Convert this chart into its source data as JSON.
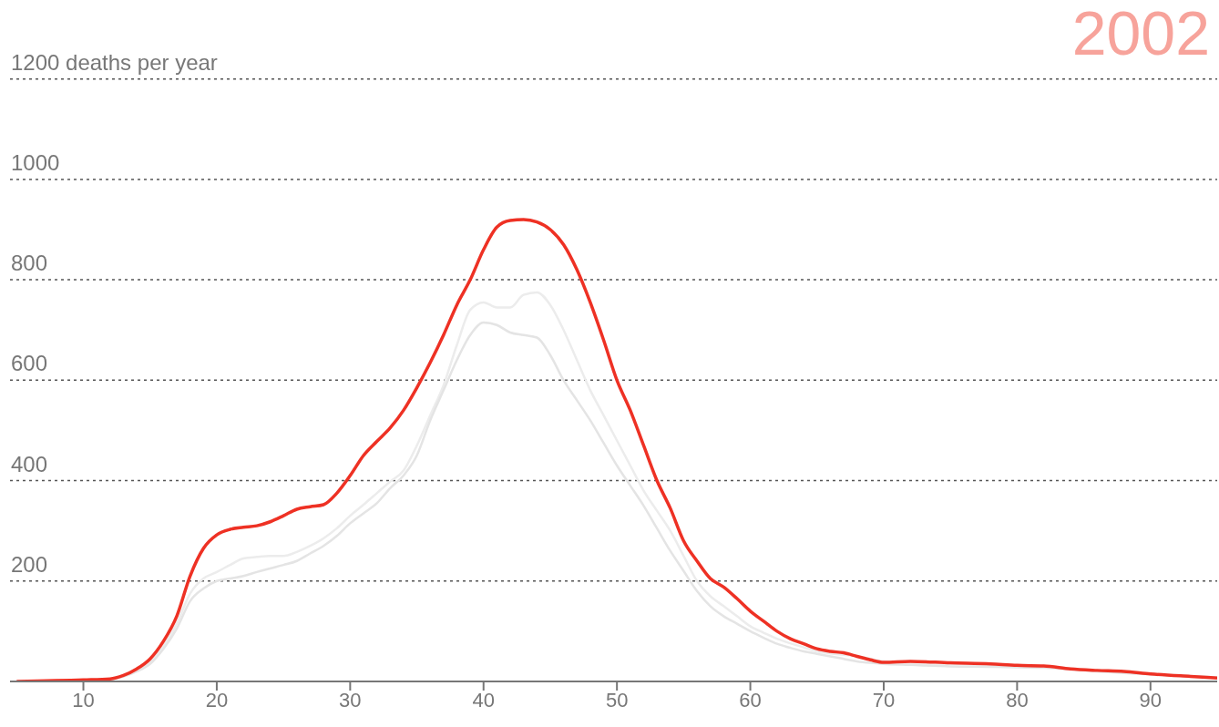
{
  "chart_data": {
    "type": "line",
    "annotations": [
      "2002"
    ],
    "x": [
      5,
      10,
      12,
      13,
      14,
      15,
      16,
      17,
      18,
      19,
      20,
      21,
      22,
      23,
      24,
      25,
      26,
      27,
      28,
      29,
      30,
      31,
      32,
      33,
      34,
      35,
      36,
      37,
      38,
      39,
      40,
      41,
      42,
      43,
      44,
      45,
      46,
      47,
      48,
      49,
      50,
      51,
      52,
      53,
      54,
      55,
      56,
      57,
      58,
      59,
      60,
      61,
      62,
      63,
      64,
      65,
      66,
      67,
      68,
      69,
      70,
      72,
      75,
      78,
      80,
      82,
      84,
      86,
      88,
      90,
      93,
      95
    ],
    "series": [
      {
        "color": "#ececec",
        "values": [
          0,
          2,
          4,
          10,
          20,
          38,
          70,
          115,
          175,
          205,
          218,
          232,
          245,
          248,
          250,
          250,
          258,
          270,
          285,
          305,
          330,
          352,
          375,
          398,
          420,
          470,
          530,
          590,
          670,
          740,
          755,
          745,
          745,
          770,
          775,
          750,
          700,
          640,
          580,
          530,
          480,
          430,
          380,
          340,
          300,
          250,
          200,
          170,
          150,
          130,
          110,
          97,
          85,
          76,
          68,
          60,
          56,
          53,
          50,
          45,
          40,
          38,
          35,
          33,
          30,
          29,
          26,
          22,
          19,
          15,
          11,
          8
        ]
      },
      {
        "color": "#e4e4e4",
        "values": [
          0,
          2,
          4,
          10,
          20,
          35,
          65,
          105,
          160,
          185,
          200,
          205,
          210,
          218,
          225,
          232,
          240,
          255,
          270,
          290,
          315,
          335,
          355,
          385,
          410,
          450,
          520,
          580,
          640,
          690,
          715,
          710,
          695,
          690,
          685,
          650,
          600,
          560,
          520,
          475,
          430,
          390,
          350,
          305,
          260,
          220,
          180,
          150,
          130,
          115,
          100,
          87,
          75,
          67,
          60,
          55,
          50,
          45,
          40,
          37,
          35,
          33,
          30,
          29,
          28,
          27,
          24,
          20,
          17,
          14,
          10,
          8
        ]
      },
      {
        "color": "#ee3124",
        "values": [
          0,
          3,
          5,
          12,
          25,
          45,
          80,
          130,
          210,
          265,
          292,
          303,
          307,
          310,
          318,
          330,
          343,
          348,
          352,
          375,
          410,
          450,
          478,
          505,
          540,
          585,
          635,
          690,
          750,
          800,
          860,
          905,
          918,
          920,
          915,
          900,
          870,
          820,
          755,
          680,
          600,
          540,
          470,
          400,
          345,
          280,
          240,
          205,
          188,
          165,
          140,
          120,
          100,
          85,
          75,
          65,
          60,
          57,
          50,
          43,
          38,
          40,
          37,
          35,
          32,
          31,
          25,
          22,
          20,
          15,
          10,
          7
        ]
      }
    ],
    "xlim": [
      4.5,
      95
    ],
    "xticks": [
      10,
      20,
      30,
      40,
      50,
      60,
      70,
      80,
      90
    ],
    "ylim": [
      0,
      1350
    ],
    "yticks": [
      200,
      400,
      600,
      800,
      1000,
      {
        "value": 1200,
        "label": "1200 deaths per year"
      }
    ],
    "grid": "y"
  }
}
